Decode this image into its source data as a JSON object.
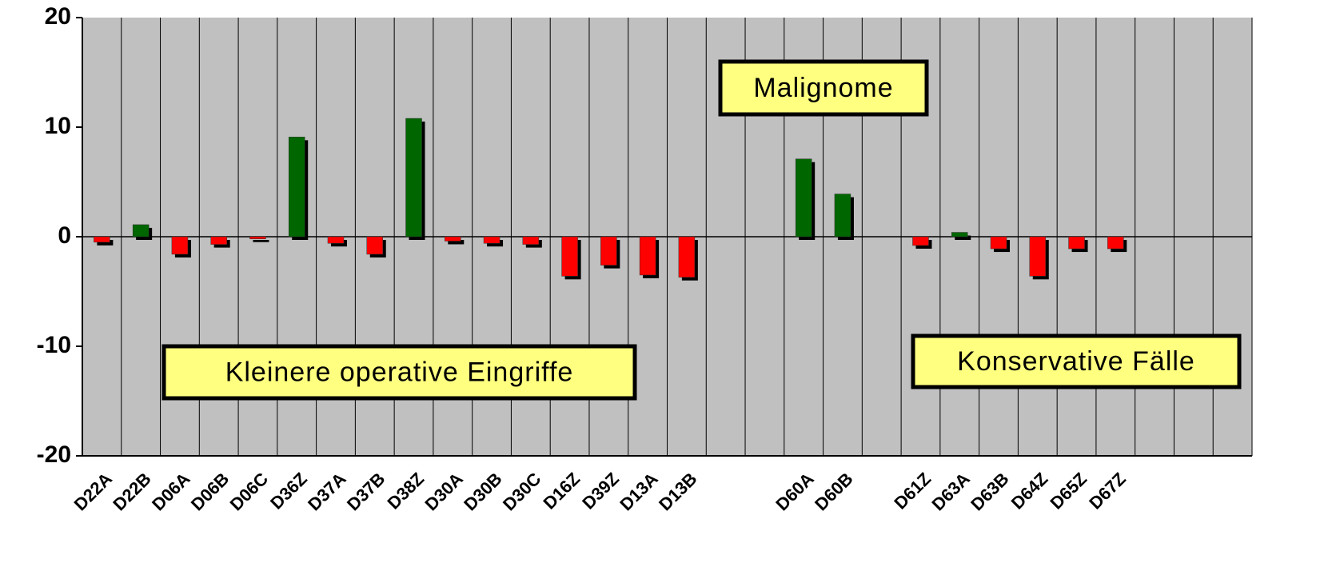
{
  "chart_data": {
    "type": "bar",
    "categories": [
      "D22A",
      "D22B",
      "D06A",
      "D06B",
      "D06C",
      "D36Z",
      "D37A",
      "D37B",
      "D38Z",
      "D30A",
      "D30B",
      "D30C",
      "D16Z",
      "D39Z",
      "D13A",
      "D13B",
      null,
      null,
      "D60A",
      "D60B",
      null,
      "D61Z",
      "D63A",
      "D63B",
      "D64Z",
      "D65Z",
      "D67Z",
      null,
      null,
      null
    ],
    "values": [
      -0.5,
      1.1,
      -1.6,
      -0.7,
      -0.2,
      9.1,
      -0.6,
      -1.6,
      10.8,
      -0.4,
      -0.6,
      -0.7,
      -3.6,
      -2.6,
      -3.5,
      -3.7,
      null,
      null,
      7.1,
      3.9,
      null,
      -0.8,
      0.4,
      -1.1,
      -3.6,
      -1.1,
      -1.1,
      null,
      null,
      null
    ],
    "positive_color": "#006600",
    "negative_color": "#ff0000",
    "ylim": [
      -20,
      20
    ],
    "yticks": [
      -20,
      -10,
      0,
      10,
      20
    ],
    "grid": true,
    "annotations": [
      {
        "text": "Malignome"
      },
      {
        "text": "Kleinere operative Eingriffe"
      },
      {
        "text": "Konservative Fälle"
      }
    ]
  }
}
